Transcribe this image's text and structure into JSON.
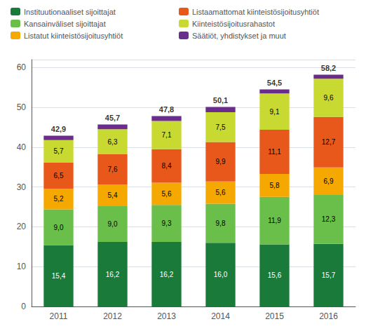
{
  "chart_data": {
    "type": "bar",
    "stacked": true,
    "data_labels": true,
    "grid": true,
    "legend": "top-left",
    "categories": [
      "2011",
      "2012",
      "2013",
      "2014",
      "2015",
      "2016"
    ],
    "series": [
      {
        "name": "Instituutionaaliset sijoittajat",
        "color": "#1a7a3a",
        "values": [
          15.4,
          16.2,
          16.2,
          16.0,
          15.6,
          15.7
        ],
        "value_labels": [
          "15,4",
          "16,2",
          "16,2",
          "16,0",
          "15,6",
          "15,7"
        ]
      },
      {
        "name": "Kansainväliset sijoittajat",
        "color": "#6abf4b",
        "values": [
          9.0,
          9.0,
          9.3,
          9.8,
          11.9,
          12.3
        ],
        "value_labels": [
          "9,0",
          "9,0",
          "9,3",
          "9,8",
          "11,9",
          "12,3"
        ]
      },
      {
        "name": "Listatut kiinteistösijoitusyhtiöt",
        "color": "#f5a800",
        "values": [
          5.2,
          5.4,
          5.6,
          5.6,
          5.8,
          6.9
        ],
        "value_labels": [
          "5,2",
          "5,4",
          "5,6",
          "5,6",
          "5,8",
          "6,9"
        ]
      },
      {
        "name": "Listaamattomat kiinteistösijoitusyhtiöt",
        "color": "#e8581a",
        "values": [
          6.5,
          7.6,
          8.4,
          9.9,
          11.1,
          12.7
        ],
        "value_labels": [
          "6,5",
          "7,6",
          "8,4",
          "9,9",
          "11,1",
          "12,7"
        ]
      },
      {
        "name": "Kiinteistösijoitusrahastot",
        "color": "#c8d932",
        "values": [
          5.7,
          6.3,
          7.1,
          7.5,
          9.1,
          9.6
        ],
        "value_labels": [
          "5,7",
          "6,3",
          "7,1",
          "7,5",
          "9,1",
          "9,6"
        ]
      },
      {
        "name": "Säätiöt, yhdistykset ja muut",
        "color": "#6b2d8b",
        "values": [
          1.1,
          1.2,
          1.2,
          1.3,
          1.0,
          1.0
        ],
        "data_labels": false
      }
    ],
    "totals": [
      42.9,
      45.7,
      47.8,
      50.1,
      54.5,
      58.2
    ],
    "total_labels": [
      "42,9",
      "45,7",
      "47,8",
      "50,1",
      "54,5",
      "58,2"
    ],
    "ylim": [
      0,
      62
    ],
    "yticks": [
      0,
      10,
      20,
      30,
      40,
      50,
      60
    ]
  }
}
